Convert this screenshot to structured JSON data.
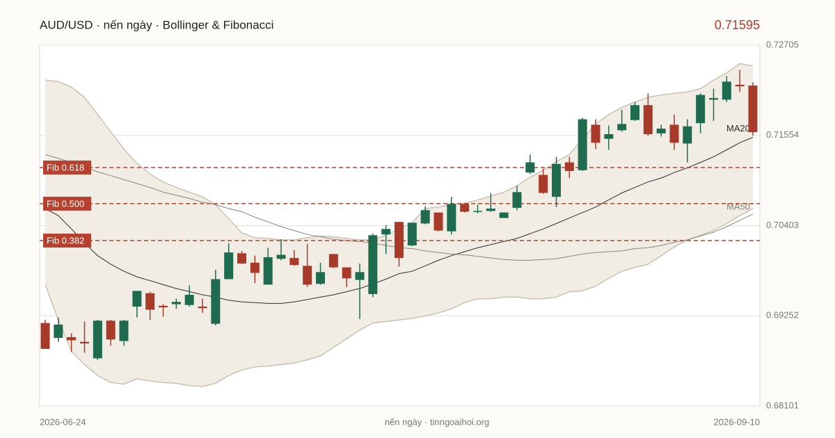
{
  "chart_data": {
    "type": "candlestick",
    "title": "AUD/USD · nến ngày · Bollinger & Fibonacci",
    "footer": "nến ngày · tinngoaihoi.org",
    "categories": [
      "2026-06-24",
      null,
      null,
      null,
      null,
      null,
      null,
      null,
      null,
      null,
      null,
      null,
      null,
      null,
      null,
      null,
      null,
      null,
      null,
      null,
      null,
      null,
      null,
      null,
      null,
      null,
      null,
      null,
      null,
      null,
      null,
      null,
      null,
      null,
      null,
      null,
      null,
      null,
      null,
      null,
      null,
      null,
      null,
      null,
      null,
      null,
      null,
      null,
      null,
      null,
      null,
      null,
      null,
      null,
      "2026-09-10"
    ],
    "open": [
      0.6916,
      0.6897,
      0.6898,
      0.6892,
      0.6871,
      0.6919,
      0.6893,
      0.6937,
      0.6954,
      0.6938,
      0.694,
      0.6939,
      0.6937,
      0.6915,
      0.6972,
      0.7005,
      0.6993,
      0.6965,
      0.6998,
      0.6999,
      0.6989,
      0.6966,
      0.7004,
      0.6987,
      0.6971,
      0.6953,
      0.7029,
      0.7045,
      0.7015,
      0.7043,
      0.7057,
      0.7033,
      0.7068,
      0.7058,
      0.7059,
      0.705,
      0.7063,
      0.7108,
      0.7105,
      0.7077,
      0.7121,
      0.7111,
      0.7169,
      0.7151,
      0.7162,
      0.7175,
      0.7194,
      0.7158,
      0.7169,
      0.7145,
      0.7171,
      0.7201,
      0.7201,
      0.722,
      0.7219
    ],
    "high": [
      0.692,
      0.6923,
      0.6903,
      0.6918,
      0.692,
      0.692,
      0.692,
      0.6957,
      0.6956,
      0.694,
      0.6947,
      0.6964,
      0.6947,
      0.6984,
      0.7018,
      0.7008,
      0.7002,
      0.7012,
      0.7023,
      0.7009,
      0.7017,
      0.6993,
      0.7004,
      0.6987,
      0.6992,
      0.703,
      0.7041,
      0.7045,
      0.7044,
      0.7065,
      0.7057,
      0.7077,
      0.7069,
      0.7067,
      0.7082,
      0.7057,
      0.7091,
      0.7131,
      0.7113,
      0.7128,
      0.7128,
      0.7178,
      0.7176,
      0.7168,
      0.7188,
      0.7198,
      0.7209,
      0.7169,
      0.7182,
      0.7176,
      0.7209,
      0.7215,
      0.7231,
      0.7239,
      0.7223
    ],
    "low": [
      0.6883,
      0.6892,
      0.6879,
      0.6878,
      0.6869,
      0.6887,
      0.6887,
      0.6923,
      0.692,
      0.6924,
      0.6934,
      0.6937,
      0.6929,
      0.6913,
      0.6972,
      0.6991,
      0.6967,
      0.6965,
      0.6996,
      0.6989,
      0.6962,
      0.6965,
      0.6986,
      0.6962,
      0.6921,
      0.6949,
      0.7004,
      0.6988,
      0.7014,
      0.7042,
      0.7033,
      0.7029,
      0.7057,
      0.7056,
      0.7058,
      0.705,
      0.706,
      0.7106,
      0.7081,
      0.7064,
      0.7101,
      0.711,
      0.7138,
      0.7137,
      0.716,
      0.7174,
      0.7155,
      0.7154,
      0.7137,
      0.7121,
      0.7158,
      0.7174,
      0.7198,
      0.7211,
      0.7155
    ],
    "close": [
      0.6883,
      0.6914,
      0.6894,
      0.689,
      0.6919,
      0.6895,
      0.6919,
      0.6957,
      0.6933,
      0.6936,
      0.6943,
      0.6952,
      0.6935,
      0.6972,
      0.7006,
      0.6992,
      0.698,
      0.7,
      0.7003,
      0.699,
      0.6965,
      0.6981,
      0.6987,
      0.6973,
      0.6981,
      0.7028,
      0.7036,
      0.6999,
      0.7044,
      0.706,
      0.7034,
      0.7068,
      0.7058,
      0.7059,
      0.7062,
      0.7057,
      0.7083,
      0.7121,
      0.7082,
      0.7119,
      0.711,
      0.7176,
      0.7146,
      0.7157,
      0.717,
      0.7194,
      0.7157,
      0.7164,
      0.7146,
      0.7167,
      0.7207,
      0.7203,
      0.7224,
      0.7218,
      0.71595
    ],
    "up_color": "#1e6b4f",
    "down_color": "#a83a2a",
    "bollinger": {
      "color": "#c9c1b3",
      "fill": "#f1ede5",
      "upper": [
        0.7226,
        0.7224,
        0.7217,
        0.7204,
        0.7182,
        0.716,
        0.7138,
        0.712,
        0.7106,
        0.7096,
        0.7089,
        0.7083,
        0.7077,
        0.7067,
        0.7049,
        0.7031,
        0.7025,
        0.7024,
        0.7022,
        0.7022,
        0.7025,
        0.7027,
        0.7026,
        0.7024,
        0.7022,
        0.7022,
        0.7028,
        0.7036,
        0.7044,
        0.7062,
        0.7064,
        0.7067,
        0.7069,
        0.7073,
        0.7078,
        0.7083,
        0.7091,
        0.7102,
        0.7111,
        0.7122,
        0.7131,
        0.7151,
        0.717,
        0.7182,
        0.7191,
        0.7198,
        0.7204,
        0.7207,
        0.7209,
        0.7211,
        0.7215,
        0.7226,
        0.7235,
        0.7247,
        0.7244
      ],
      "lower": [
        0.6965,
        0.692,
        0.688,
        0.6863,
        0.6849,
        0.684,
        0.6838,
        0.6845,
        0.6842,
        0.684,
        0.6839,
        0.6836,
        0.6835,
        0.6839,
        0.6849,
        0.6856,
        0.686,
        0.6861,
        0.6863,
        0.6865,
        0.6869,
        0.6874,
        0.6885,
        0.6896,
        0.6907,
        0.6916,
        0.6918,
        0.692,
        0.6922,
        0.6925,
        0.6929,
        0.6934,
        0.6942,
        0.6947,
        0.6947,
        0.6949,
        0.6949,
        0.6947,
        0.6947,
        0.6949,
        0.6956,
        0.6957,
        0.6963,
        0.6973,
        0.6982,
        0.6987,
        0.6991,
        0.7002,
        0.7013,
        0.7022,
        0.7028,
        0.7034,
        0.7043,
        0.7053,
        0.7062
      ]
    },
    "series": [
      {
        "name": "MA20",
        "color": "#2b2b2b",
        "values": [
          0.7062,
          0.7053,
          0.7036,
          0.7018,
          0.7002,
          0.6991,
          0.6982,
          0.6975,
          0.697,
          0.6965,
          0.696,
          0.6956,
          0.6952,
          0.6949,
          0.6945,
          0.6943,
          0.6942,
          0.6941,
          0.6941,
          0.6943,
          0.6946,
          0.6949,
          0.6952,
          0.6956,
          0.696,
          0.6966,
          0.6972,
          0.6979,
          0.6982,
          0.6989,
          0.6996,
          0.7002,
          0.7007,
          0.7012,
          0.7016,
          0.702,
          0.7024,
          0.703,
          0.7036,
          0.7043,
          0.705,
          0.7057,
          0.7064,
          0.7073,
          0.7082,
          0.7089,
          0.7096,
          0.7101,
          0.7108,
          0.7114,
          0.7121,
          0.7128,
          0.7137,
          0.7146,
          0.7153
        ]
      },
      {
        "name": "MA50",
        "color": "#8a857c",
        "values": [
          0.7131,
          0.7126,
          0.7121,
          0.7115,
          0.7109,
          0.7104,
          0.7099,
          0.7094,
          0.7089,
          0.7083,
          0.7079,
          0.7075,
          0.707,
          0.7067,
          0.7062,
          0.7058,
          0.7051,
          0.7045,
          0.7039,
          0.7034,
          0.7029,
          0.7026,
          0.7023,
          0.7021,
          0.702,
          0.7018,
          0.7015,
          0.7012,
          0.7011,
          0.7008,
          0.7006,
          0.7004,
          0.7003,
          0.7001,
          0.6999,
          0.6997,
          0.6996,
          0.6996,
          0.6997,
          0.6998,
          0.7001,
          0.7004,
          0.7006,
          0.7007,
          0.7008,
          0.7011,
          0.7012,
          0.7015,
          0.7019,
          0.7022,
          0.7027,
          0.7032,
          0.7039,
          0.7047,
          0.7055
        ]
      }
    ],
    "fib_color": "#b5412e",
    "fib_levels": [
      {
        "label": "Fib 0.618",
        "value": 0.71144
      },
      {
        "label": "Fib 0.500",
        "value": 0.70683
      },
      {
        "label": "Fib 0.382",
        "value": 0.70212
      }
    ],
    "ylim": [
      0.68101,
      0.72705
    ],
    "yticks": [
      0.68101,
      0.69252,
      0.70403,
      0.71554,
      0.72705
    ],
    "grid": true
  }
}
